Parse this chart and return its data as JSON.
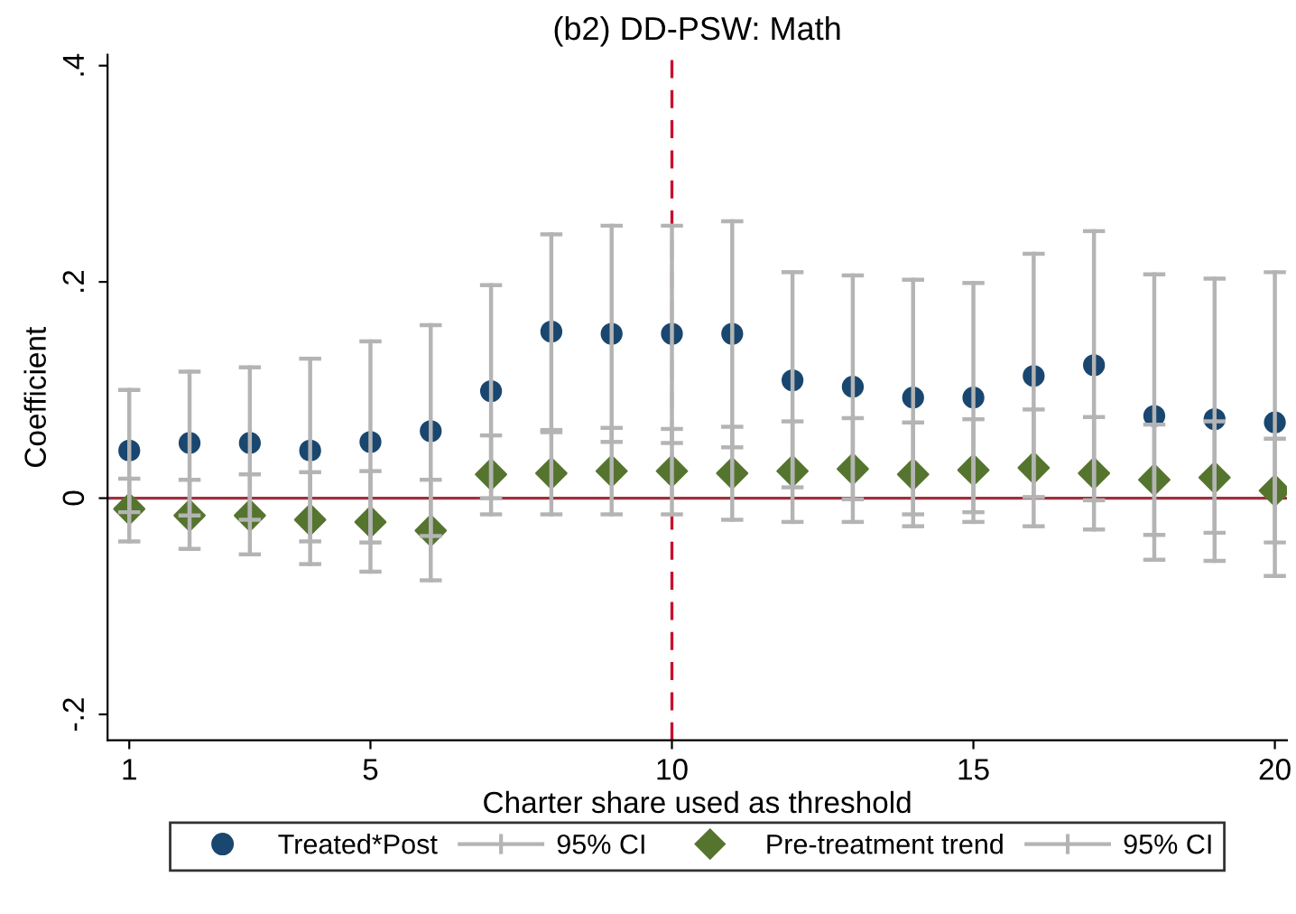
{
  "chart_data": {
    "type": "scatter",
    "title": "(b2) DD-PSW: Math",
    "xlabel": "Charter share used as threshold",
    "ylabel": "Coefficient",
    "x": [
      1,
      2,
      3,
      4,
      5,
      6,
      7,
      8,
      9,
      10,
      11,
      12,
      13,
      14,
      15,
      16,
      17,
      18,
      19,
      20
    ],
    "series": [
      {
        "name": "Treated*Post",
        "color": "#1a476f",
        "marker": "circle",
        "values": [
          0.044,
          0.051,
          0.051,
          0.044,
          0.052,
          0.062,
          0.099,
          0.154,
          0.152,
          0.152,
          0.152,
          0.109,
          0.103,
          0.093,
          0.093,
          0.113,
          0.123,
          0.076,
          0.073,
          0.07
        ],
        "errors": [
          [
            -0.013,
            0.1
          ],
          [
            -0.016,
            0.117
          ],
          [
            -0.02,
            0.121
          ],
          [
            -0.04,
            0.129
          ],
          [
            -0.041,
            0.145
          ],
          [
            -0.035,
            0.16
          ],
          [
            0.0,
            0.197
          ],
          [
            0.063,
            0.244
          ],
          [
            0.052,
            0.252
          ],
          [
            0.051,
            0.252
          ],
          [
            0.047,
            0.256
          ],
          [
            0.01,
            0.209
          ],
          [
            -0.001,
            0.206
          ],
          [
            -0.015,
            0.202
          ],
          [
            -0.013,
            0.199
          ],
          [
            0.001,
            0.226
          ],
          [
            -0.002,
            0.247
          ],
          [
            -0.057,
            0.207
          ],
          [
            -0.058,
            0.203
          ],
          [
            -0.072,
            0.209
          ]
        ]
      },
      {
        "name": "Pre-treatment trend",
        "color": "#55752f",
        "marker": "diamond",
        "values": [
          -0.01,
          -0.016,
          -0.016,
          -0.02,
          -0.022,
          -0.03,
          0.022,
          0.023,
          0.025,
          0.025,
          0.023,
          0.025,
          0.027,
          0.022,
          0.026,
          0.028,
          0.023,
          0.017,
          0.019,
          0.007
        ],
        "errors": [
          [
            -0.04,
            0.018
          ],
          [
            -0.047,
            0.017
          ],
          [
            -0.052,
            0.022
          ],
          [
            -0.061,
            0.024
          ],
          [
            -0.068,
            0.025
          ],
          [
            -0.076,
            0.017
          ],
          [
            -0.015,
            0.058
          ],
          [
            -0.015,
            0.061
          ],
          [
            -0.015,
            0.065
          ],
          [
            -0.015,
            0.064
          ],
          [
            -0.02,
            0.066
          ],
          [
            -0.022,
            0.071
          ],
          [
            -0.022,
            0.074
          ],
          [
            -0.026,
            0.07
          ],
          [
            -0.022,
            0.073
          ],
          [
            -0.026,
            0.082
          ],
          [
            -0.029,
            0.075
          ],
          [
            -0.034,
            0.068
          ],
          [
            -0.032,
            0.071
          ],
          [
            -0.041,
            0.055
          ]
        ]
      }
    ],
    "xlim": [
      0.64,
      20.2
    ],
    "ylim": [
      -0.224,
      0.41
    ],
    "xticks": [
      1,
      5,
      10,
      15,
      20
    ],
    "yticks": [
      {
        "value": -0.2,
        "label": "-.2"
      },
      {
        "value": 0,
        "label": "0"
      },
      {
        "value": 0.2,
        "label": ".2"
      },
      {
        "value": 0.4,
        "label": ".4"
      }
    ],
    "ref_lines": [
      {
        "axis": "y",
        "value": 0,
        "color": "#a03040",
        "line_style": "solid"
      },
      {
        "axis": "x",
        "value": 10,
        "color": "#c8102e",
        "line_style": "dashed"
      }
    ],
    "annotations": [
      "95% CI",
      "95% CI"
    ],
    "grid": false,
    "legend": "bottom"
  }
}
